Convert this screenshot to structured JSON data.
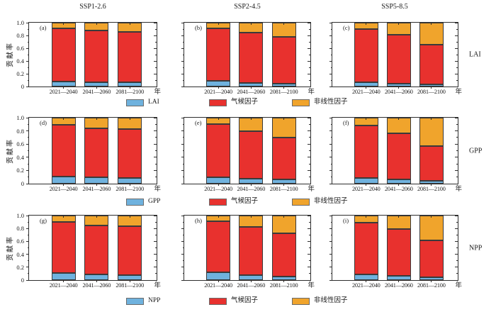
{
  "figure": {
    "columns": [
      {
        "title": "SSP1-2.6"
      },
      {
        "title": "SSP2-4.5"
      },
      {
        "title": "SSP5-8.5"
      }
    ],
    "rows": [
      {
        "label": "LAI"
      },
      {
        "label": "GPP"
      },
      {
        "label": "NPP"
      }
    ],
    "axis": {
      "ylabel": "贡献率",
      "xunit": "年",
      "ylim": [
        0,
        1
      ],
      "yticks": [
        {
          "v": 1.0,
          "t": "1.0"
        },
        {
          "v": 0.8,
          "t": "0.8"
        },
        {
          "v": 0.6,
          "t": "0.6"
        },
        {
          "v": 0.4,
          "t": "0.4"
        },
        {
          "v": 0.2,
          "t": "0.2"
        },
        {
          "v": 0.0,
          "t": "0"
        }
      ]
    },
    "legend": {
      "climate": "气候因子",
      "nonlinear": "非线性因子"
    },
    "colors": {
      "variable": "#6FB2DE",
      "climate": "#E8312E",
      "nonlinear": "#F0A42C",
      "bar_border": "#3a3a3a"
    }
  },
  "chart_data": [
    {
      "panel": "(a)",
      "scenario": "SSP1-2.6",
      "variable": "LAI",
      "type": "bar",
      "stacked": true,
      "grid": false,
      "ylim": [
        0,
        1
      ],
      "categories": [
        "2021—2040",
        "2041—2060",
        "2081—2100"
      ],
      "series": [
        {
          "name": "LAI",
          "color_key": "variable",
          "values": [
            0.08,
            0.07,
            0.07
          ]
        },
        {
          "name": "气候因子",
          "color_key": "climate",
          "values": [
            0.83,
            0.81,
            0.79
          ]
        },
        {
          "name": "非线性因子",
          "color_key": "nonlinear",
          "values": [
            0.09,
            0.12,
            0.14
          ]
        }
      ]
    },
    {
      "panel": "(b)",
      "scenario": "SSP2-4.5",
      "variable": "LAI",
      "type": "bar",
      "stacked": true,
      "grid": false,
      "ylim": [
        0,
        1
      ],
      "categories": [
        "2021—2040",
        "2041—2060",
        "2081—2100"
      ],
      "series": [
        {
          "name": "LAI",
          "color_key": "variable",
          "values": [
            0.09,
            0.06,
            0.04
          ]
        },
        {
          "name": "气候因子",
          "color_key": "climate",
          "values": [
            0.82,
            0.79,
            0.74
          ]
        },
        {
          "name": "非线性因子",
          "color_key": "nonlinear",
          "values": [
            0.09,
            0.15,
            0.22
          ]
        }
      ]
    },
    {
      "panel": "(c)",
      "scenario": "SSP5-8.5",
      "variable": "LAI",
      "type": "bar",
      "stacked": true,
      "grid": false,
      "ylim": [
        0,
        1
      ],
      "categories": [
        "2021—2040",
        "2041—2060",
        "2081—2100"
      ],
      "series": [
        {
          "name": "LAI",
          "color_key": "variable",
          "values": [
            0.07,
            0.05,
            0.03
          ]
        },
        {
          "name": "气候因子",
          "color_key": "climate",
          "values": [
            0.83,
            0.76,
            0.63
          ]
        },
        {
          "name": "非线性因子",
          "color_key": "nonlinear",
          "values": [
            0.1,
            0.19,
            0.34
          ]
        }
      ]
    },
    {
      "panel": "(d)",
      "scenario": "SSP1-2.6",
      "variable": "GPP",
      "type": "bar",
      "stacked": true,
      "grid": false,
      "ylim": [
        0,
        1
      ],
      "categories": [
        "2021—2040",
        "2041—2060",
        "2081—2100"
      ],
      "series": [
        {
          "name": "GPP",
          "color_key": "variable",
          "values": [
            0.11,
            0.1,
            0.09
          ]
        },
        {
          "name": "气候因子",
          "color_key": "climate",
          "values": [
            0.78,
            0.74,
            0.74
          ]
        },
        {
          "name": "非线性因子",
          "color_key": "nonlinear",
          "values": [
            0.11,
            0.16,
            0.17
          ]
        }
      ]
    },
    {
      "panel": "(e)",
      "scenario": "SSP2-4.5",
      "variable": "GPP",
      "type": "bar",
      "stacked": true,
      "grid": false,
      "ylim": [
        0,
        1
      ],
      "categories": [
        "2021—2040",
        "2041—2060",
        "2081—2100"
      ],
      "series": [
        {
          "name": "GPP",
          "color_key": "variable",
          "values": [
            0.1,
            0.08,
            0.06
          ]
        },
        {
          "name": "气候因子",
          "color_key": "climate",
          "values": [
            0.8,
            0.72,
            0.64
          ]
        },
        {
          "name": "非线性因子",
          "color_key": "nonlinear",
          "values": [
            0.1,
            0.2,
            0.3
          ]
        }
      ]
    },
    {
      "panel": "(f)",
      "scenario": "SSP5-8.5",
      "variable": "GPP",
      "type": "bar",
      "stacked": true,
      "grid": false,
      "ylim": [
        0,
        1
      ],
      "categories": [
        "2021—2040",
        "2041—2060",
        "2081—2100"
      ],
      "series": [
        {
          "name": "GPP",
          "color_key": "variable",
          "values": [
            0.09,
            0.07,
            0.04
          ]
        },
        {
          "name": "气候因子",
          "color_key": "climate",
          "values": [
            0.79,
            0.69,
            0.53
          ]
        },
        {
          "name": "非线性因子",
          "color_key": "nonlinear",
          "values": [
            0.12,
            0.24,
            0.43
          ]
        }
      ]
    },
    {
      "panel": "(g)",
      "scenario": "SSP1-2.6",
      "variable": "NPP",
      "type": "bar",
      "stacked": true,
      "grid": false,
      "ylim": [
        0,
        1
      ],
      "categories": [
        "2021—2040",
        "2041—2060",
        "2081—2100"
      ],
      "series": [
        {
          "name": "NPP",
          "color_key": "variable",
          "values": [
            0.11,
            0.09,
            0.08
          ]
        },
        {
          "name": "气候因子",
          "color_key": "climate",
          "values": [
            0.79,
            0.76,
            0.76
          ]
        },
        {
          "name": "非线性因子",
          "color_key": "nonlinear",
          "values": [
            0.1,
            0.15,
            0.16
          ]
        }
      ]
    },
    {
      "panel": "(h)",
      "scenario": "SSP2-4.5",
      "variable": "NPP",
      "type": "bar",
      "stacked": true,
      "grid": false,
      "ylim": [
        0,
        1
      ],
      "categories": [
        "2021—2040",
        "2041—2060",
        "2081—2100"
      ],
      "series": [
        {
          "name": "NPP",
          "color_key": "variable",
          "values": [
            0.12,
            0.08,
            0.06
          ]
        },
        {
          "name": "气候因子",
          "color_key": "climate",
          "values": [
            0.79,
            0.74,
            0.67
          ]
        },
        {
          "name": "非线性因子",
          "color_key": "nonlinear",
          "values": [
            0.09,
            0.18,
            0.27
          ]
        }
      ]
    },
    {
      "panel": "(i)",
      "scenario": "SSP5-8.5",
      "variable": "NPP",
      "type": "bar",
      "stacked": true,
      "grid": false,
      "ylim": [
        0,
        1
      ],
      "categories": [
        "2021—2040",
        "2041—2060",
        "2081—2100"
      ],
      "series": [
        {
          "name": "NPP",
          "color_key": "variable",
          "values": [
            0.09,
            0.07,
            0.04
          ]
        },
        {
          "name": "气候因子",
          "color_key": "climate",
          "values": [
            0.8,
            0.72,
            0.58
          ]
        },
        {
          "name": "非线性因子",
          "color_key": "nonlinear",
          "values": [
            0.11,
            0.21,
            0.38
          ]
        }
      ]
    }
  ]
}
